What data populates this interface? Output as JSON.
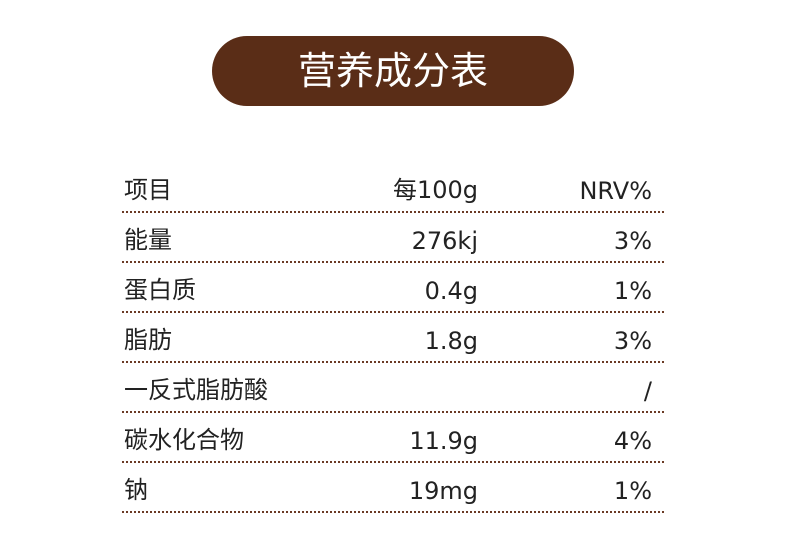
{
  "header": {
    "title": "营养成分表"
  },
  "table": {
    "columns": [
      "项目",
      "每100g",
      "NRV%"
    ],
    "rows": [
      [
        "能量",
        "276kj",
        "3%"
      ],
      [
        "蛋白质",
        "0.4g",
        "1%"
      ],
      [
        "脂肪",
        "1.8g",
        "3%"
      ],
      [
        "一反式脂肪酸",
        "",
        "/"
      ],
      [
        "碳水化合物",
        "11.9g",
        "4%"
      ],
      [
        "钠",
        "19mg",
        "1%"
      ]
    ]
  }
}
